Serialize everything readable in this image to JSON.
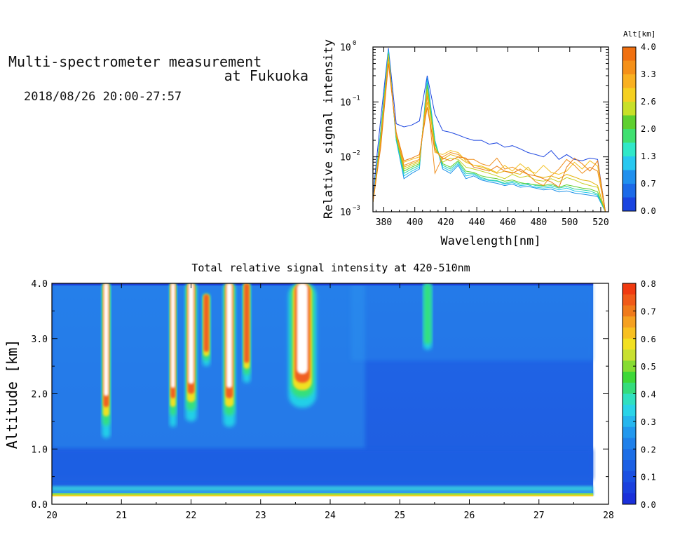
{
  "header": {
    "title_line1": "Multi-spectrometer measurement",
    "title_line2": "at Fukuoka",
    "datetime": "2018/08/26 20:00-27:57"
  },
  "chart_data": [
    {
      "type": "line",
      "xlabel": "Wavelength[nm]",
      "ylabel": "Relative signal intensity",
      "xlim": [
        373,
        525
      ],
      "ylim": [
        0.001,
        1
      ],
      "yscale": "log",
      "xticks": [
        380,
        400,
        420,
        440,
        460,
        480,
        500,
        520
      ],
      "yticks": [
        {
          "base": "10",
          "exp": "0"
        },
        {
          "base": "10",
          "exp": "−1"
        },
        {
          "base": "10",
          "exp": "−2"
        },
        {
          "base": "10",
          "exp": "−3"
        }
      ],
      "x": [
        373,
        378,
        383,
        388,
        393,
        398,
        403,
        408,
        413,
        418,
        423,
        428,
        433,
        438,
        443,
        448,
        453,
        458,
        463,
        468,
        473,
        478,
        483,
        488,
        493,
        498,
        503,
        508,
        513,
        518,
        523
      ],
      "series": [
        {
          "color": "#1f48e0",
          "values": [
            0.002,
            0.05,
            0.95,
            0.04,
            0.035,
            0.038,
            0.045,
            0.3,
            0.06,
            0.03,
            0.028,
            0.025,
            0.022,
            0.02,
            0.02,
            0.017,
            0.018,
            0.015,
            0.016,
            0.014,
            0.012,
            0.011,
            0.01,
            0.013,
            0.009,
            0.011,
            0.009,
            0.0085,
            0.0095,
            0.009,
            0.001
          ]
        },
        {
          "color": "#1a8fe8",
          "values": [
            0.0015,
            0.03,
            0.9,
            0.02,
            0.004,
            0.005,
            0.006,
            0.28,
            0.02,
            0.006,
            0.005,
            0.007,
            0.004,
            0.0045,
            0.0038,
            0.0035,
            0.0033,
            0.003,
            0.0032,
            0.0028,
            0.0029,
            0.0027,
            0.0025,
            0.0026,
            0.0023,
            0.0024,
            0.0022,
            0.0021,
            0.002,
            0.0019,
            0.001
          ]
        },
        {
          "color": "#22c9ea",
          "values": [
            0.0015,
            0.03,
            0.85,
            0.02,
            0.0045,
            0.0055,
            0.0065,
            0.25,
            0.02,
            0.0065,
            0.0055,
            0.0075,
            0.0045,
            0.0048,
            0.004,
            0.0037,
            0.0036,
            0.0032,
            0.0034,
            0.003,
            0.0031,
            0.0028,
            0.0027,
            0.0028,
            0.0025,
            0.0027,
            0.0024,
            0.0023,
            0.0022,
            0.002,
            0.001
          ]
        },
        {
          "color": "#2fd3a0",
          "values": [
            0.0015,
            0.028,
            0.8,
            0.022,
            0.005,
            0.006,
            0.007,
            0.22,
            0.018,
            0.007,
            0.006,
            0.008,
            0.005,
            0.005,
            0.0042,
            0.0038,
            0.0037,
            0.0033,
            0.0036,
            0.0032,
            0.0033,
            0.003,
            0.0029,
            0.003,
            0.0027,
            0.0029,
            0.0026,
            0.0025,
            0.0024,
            0.0021,
            0.001
          ]
        },
        {
          "color": "#5fd030",
          "values": [
            0.0015,
            0.025,
            0.75,
            0.022,
            0.0055,
            0.0065,
            0.0075,
            0.2,
            0.017,
            0.0075,
            0.0065,
            0.0085,
            0.0055,
            0.0052,
            0.0045,
            0.0042,
            0.004,
            0.0036,
            0.0038,
            0.0034,
            0.0032,
            0.0031,
            0.003,
            0.0032,
            0.0028,
            0.0031,
            0.0029,
            0.0027,
            0.0026,
            0.0023,
            0.001
          ]
        },
        {
          "color": "#c6cf20",
          "values": [
            0.0015,
            0.022,
            0.7,
            0.025,
            0.006,
            0.007,
            0.008,
            0.17,
            0.015,
            0.008,
            0.0095,
            0.009,
            0.0065,
            0.006,
            0.0055,
            0.005,
            0.0045,
            0.004,
            0.0048,
            0.0042,
            0.0045,
            0.0038,
            0.0036,
            0.004,
            0.0035,
            0.0042,
            0.0038,
            0.0033,
            0.003,
            0.0028,
            0.001
          ]
        },
        {
          "color": "#e5b512",
          "values": [
            0.0015,
            0.02,
            0.65,
            0.025,
            0.0065,
            0.0075,
            0.0085,
            0.15,
            0.014,
            0.009,
            0.011,
            0.01,
            0.008,
            0.007,
            0.0065,
            0.0058,
            0.005,
            0.0055,
            0.0052,
            0.0048,
            0.0065,
            0.0045,
            0.0042,
            0.0045,
            0.004,
            0.0048,
            0.0043,
            0.0038,
            0.0036,
            0.003,
            0.001
          ]
        },
        {
          "color": "#f09020",
          "values": [
            0.0015,
            0.018,
            0.6,
            0.026,
            0.007,
            0.008,
            0.009,
            0.13,
            0.005,
            0.01,
            0.012,
            0.011,
            0.009,
            0.009,
            0.0075,
            0.0068,
            0.0095,
            0.006,
            0.0065,
            0.0055,
            0.0048,
            0.0035,
            0.003,
            0.0045,
            0.006,
            0.009,
            0.007,
            0.005,
            0.0065,
            0.0055,
            0.001
          ]
        },
        {
          "color": "#f4c020",
          "values": [
            0.0015,
            0.016,
            0.55,
            0.027,
            0.008,
            0.009,
            0.01,
            0.1,
            0.012,
            0.011,
            0.013,
            0.012,
            0.0085,
            0.007,
            0.0068,
            0.006,
            0.0052,
            0.007,
            0.0055,
            0.0075,
            0.0058,
            0.005,
            0.007,
            0.0052,
            0.0048,
            0.0055,
            0.008,
            0.006,
            0.0085,
            0.0068,
            0.001
          ]
        },
        {
          "color": "#ea7a10",
          "values": [
            0.0015,
            0.015,
            0.5,
            0.028,
            0.0085,
            0.0095,
            0.011,
            0.08,
            0.013,
            0.0095,
            0.0085,
            0.01,
            0.0095,
            0.0065,
            0.006,
            0.0055,
            0.0068,
            0.0055,
            0.005,
            0.006,
            0.0048,
            0.0045,
            0.004,
            0.0035,
            0.0028,
            0.0065,
            0.0095,
            0.0075,
            0.0055,
            0.0085,
            0.001
          ]
        }
      ],
      "legend": {
        "title": "Alt[km]",
        "labels": [
          "4.0",
          "3.3",
          "2.6",
          "2.0",
          "1.3",
          "0.7",
          "0.0"
        ],
        "placement": "right"
      }
    },
    {
      "type": "heatmap",
      "title": "Total relative signal intensity at 420-510nm",
      "ylabel": "Altitude [km]",
      "xlim": [
        20,
        28
      ],
      "ylim": [
        0,
        4
      ],
      "xticks": [
        "20",
        "21",
        "22",
        "23",
        "24",
        "25",
        "26",
        "27",
        "28"
      ],
      "yticks": [
        "0.0",
        "1.0",
        "2.0",
        "3.0",
        "4.0"
      ],
      "data_end_x": 27.78,
      "data_bottom_y": 0.15,
      "colorbar": {
        "range": [
          0,
          0.8
        ],
        "labels": [
          "0.8",
          "0.7",
          "0.6",
          "0.5",
          "0.4",
          "0.3",
          "0.2",
          "0.1",
          "0.0"
        ]
      },
      "plumes": [
        {
          "x": 20.78,
          "width": 0.08,
          "bottom": 1.2,
          "top": 4.0,
          "peak": 0.9
        },
        {
          "x": 21.74,
          "width": 0.06,
          "bottom": 1.4,
          "top": 4.0,
          "peak": 0.85
        },
        {
          "x": 22.0,
          "width": 0.12,
          "bottom": 1.5,
          "top": 4.0,
          "peak": 0.9
        },
        {
          "x": 22.22,
          "width": 0.07,
          "bottom": 2.5,
          "top": 3.8,
          "peak": 0.7
        },
        {
          "x": 22.55,
          "width": 0.13,
          "bottom": 1.4,
          "top": 4.0,
          "peak": 0.95
        },
        {
          "x": 22.8,
          "width": 0.07,
          "bottom": 2.2,
          "top": 4.0,
          "peak": 0.75
        },
        {
          "x": 23.6,
          "width": 0.36,
          "bottom": 1.75,
          "top": 4.0,
          "peak": 1.1
        },
        {
          "x": 25.4,
          "width": 0.08,
          "bottom": 2.8,
          "top": 4.0,
          "peak": 0.3
        }
      ]
    }
  ]
}
